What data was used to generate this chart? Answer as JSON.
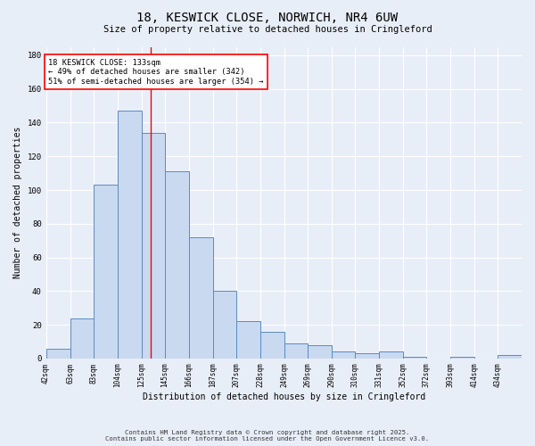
{
  "title_line1": "18, KESWICK CLOSE, NORWICH, NR4 6UW",
  "title_line2": "Size of property relative to detached houses in Cringleford",
  "xlabel": "Distribution of detached houses by size in Cringleford",
  "ylabel": "Number of detached properties",
  "bar_edges": [
    42,
    63,
    83,
    104,
    125,
    145,
    166,
    187,
    207,
    228,
    249,
    269,
    290,
    310,
    331,
    352,
    372,
    393,
    414,
    434,
    455
  ],
  "bar_heights": [
    6,
    24,
    103,
    147,
    134,
    111,
    72,
    40,
    22,
    16,
    9,
    8,
    4,
    3,
    4,
    1,
    0,
    1,
    0,
    2
  ],
  "bar_color": "#c9d9f0",
  "bar_edge_color": "#5a8ac6",
  "vline_x": 133,
  "vline_color": "red",
  "annotation_title": "18 KESWICK CLOSE: 133sqm",
  "annotation_line2": "← 49% of detached houses are smaller (342)",
  "annotation_line3": "51% of semi-detached houses are larger (354) →",
  "annotation_box_color": "white",
  "annotation_box_edge": "red",
  "ylim": [
    0,
    185
  ],
  "yticks": [
    0,
    20,
    40,
    60,
    80,
    100,
    120,
    140,
    160,
    180
  ],
  "background_color": "#e8eef8",
  "grid_color": "white",
  "footer_line1": "Contains HM Land Registry data © Crown copyright and database right 2025.",
  "footer_line2": "Contains public sector information licensed under the Open Government Licence v3.0."
}
